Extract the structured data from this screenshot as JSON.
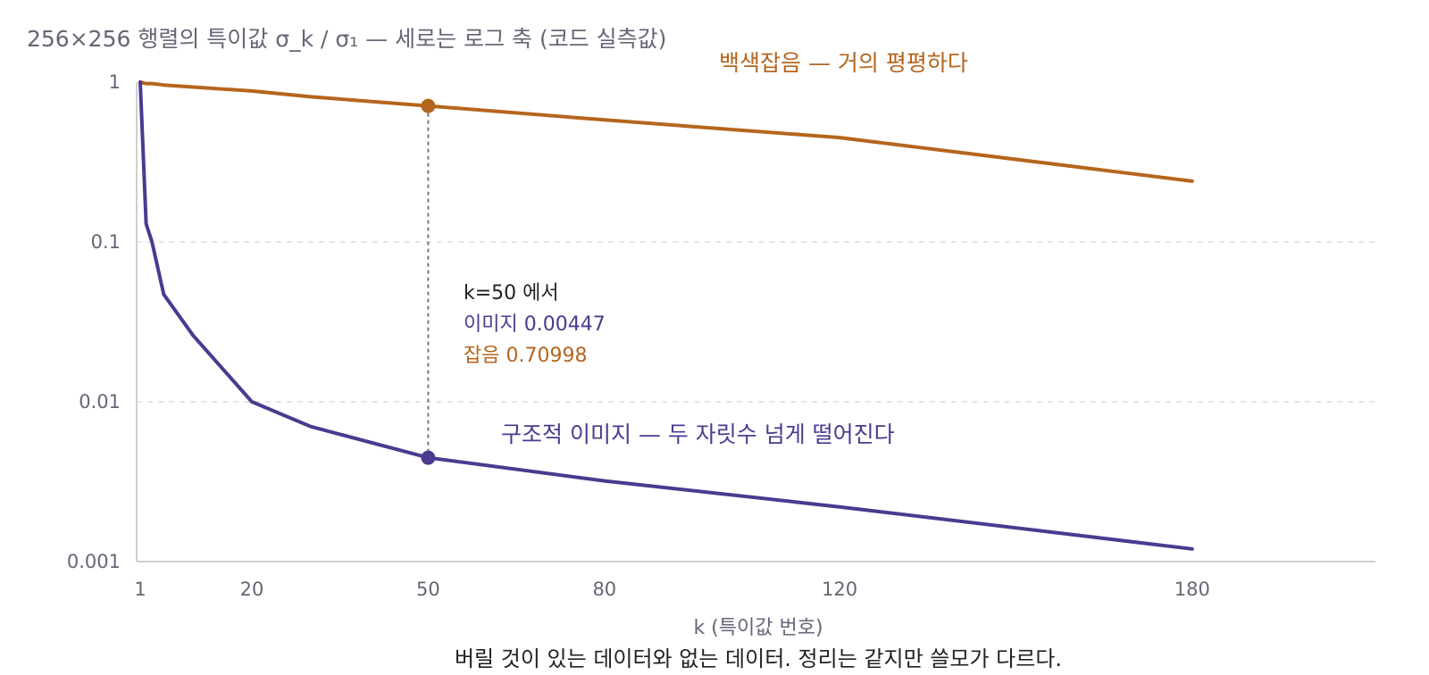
{
  "chart_data": {
    "type": "line",
    "title": "256×256 행렬의 특이값 σ_k / σ₁ — 세로는 로그 축 (코드 실측값)",
    "xlabel": "k (특이값 번호)",
    "ylabel": "",
    "caption": "버릴 것이 있는 데이터와 없는 데이터. 정리는 같지만 쓸모가 다르다.",
    "y_scale": "log",
    "ylim": [
      0.001,
      1
    ],
    "xlim": [
      1,
      256
    ],
    "x_ticks": [
      1,
      20,
      50,
      80,
      120,
      180
    ],
    "y_ticks": [
      1,
      0.1,
      0.01,
      0.001
    ],
    "y_tick_labels": [
      "1",
      "0.1",
      "0.01",
      "0.001"
    ],
    "grid": true,
    "series": [
      {
        "name": "백색잡음 — 거의 평평하다",
        "color": "#b5651d",
        "x": [
          1,
          2,
          3,
          5,
          20,
          30,
          50,
          80,
          120,
          180
        ],
        "y": [
          1,
          0.98,
          0.98,
          0.96,
          0.88,
          0.81,
          0.70998,
          0.58,
          0.45,
          0.24
        ]
      },
      {
        "name": "구조적 이미지 — 두 자릿수 넘게 떨어진다",
        "color": "#4b3a8f",
        "x": [
          1,
          2,
          3,
          5,
          10,
          20,
          30,
          50,
          80,
          120,
          180
        ],
        "y": [
          1,
          0.13,
          0.1,
          0.047,
          0.026,
          0.01,
          0.007,
          0.00447,
          0.0032,
          0.0022,
          0.0012
        ]
      }
    ],
    "annotation": {
      "header": "k=50 에서",
      "image_label": "이미지 0.00447",
      "noise_label": "잡음 0.70998",
      "x": 50,
      "image_value": 0.00447,
      "noise_value": 0.70998
    }
  }
}
